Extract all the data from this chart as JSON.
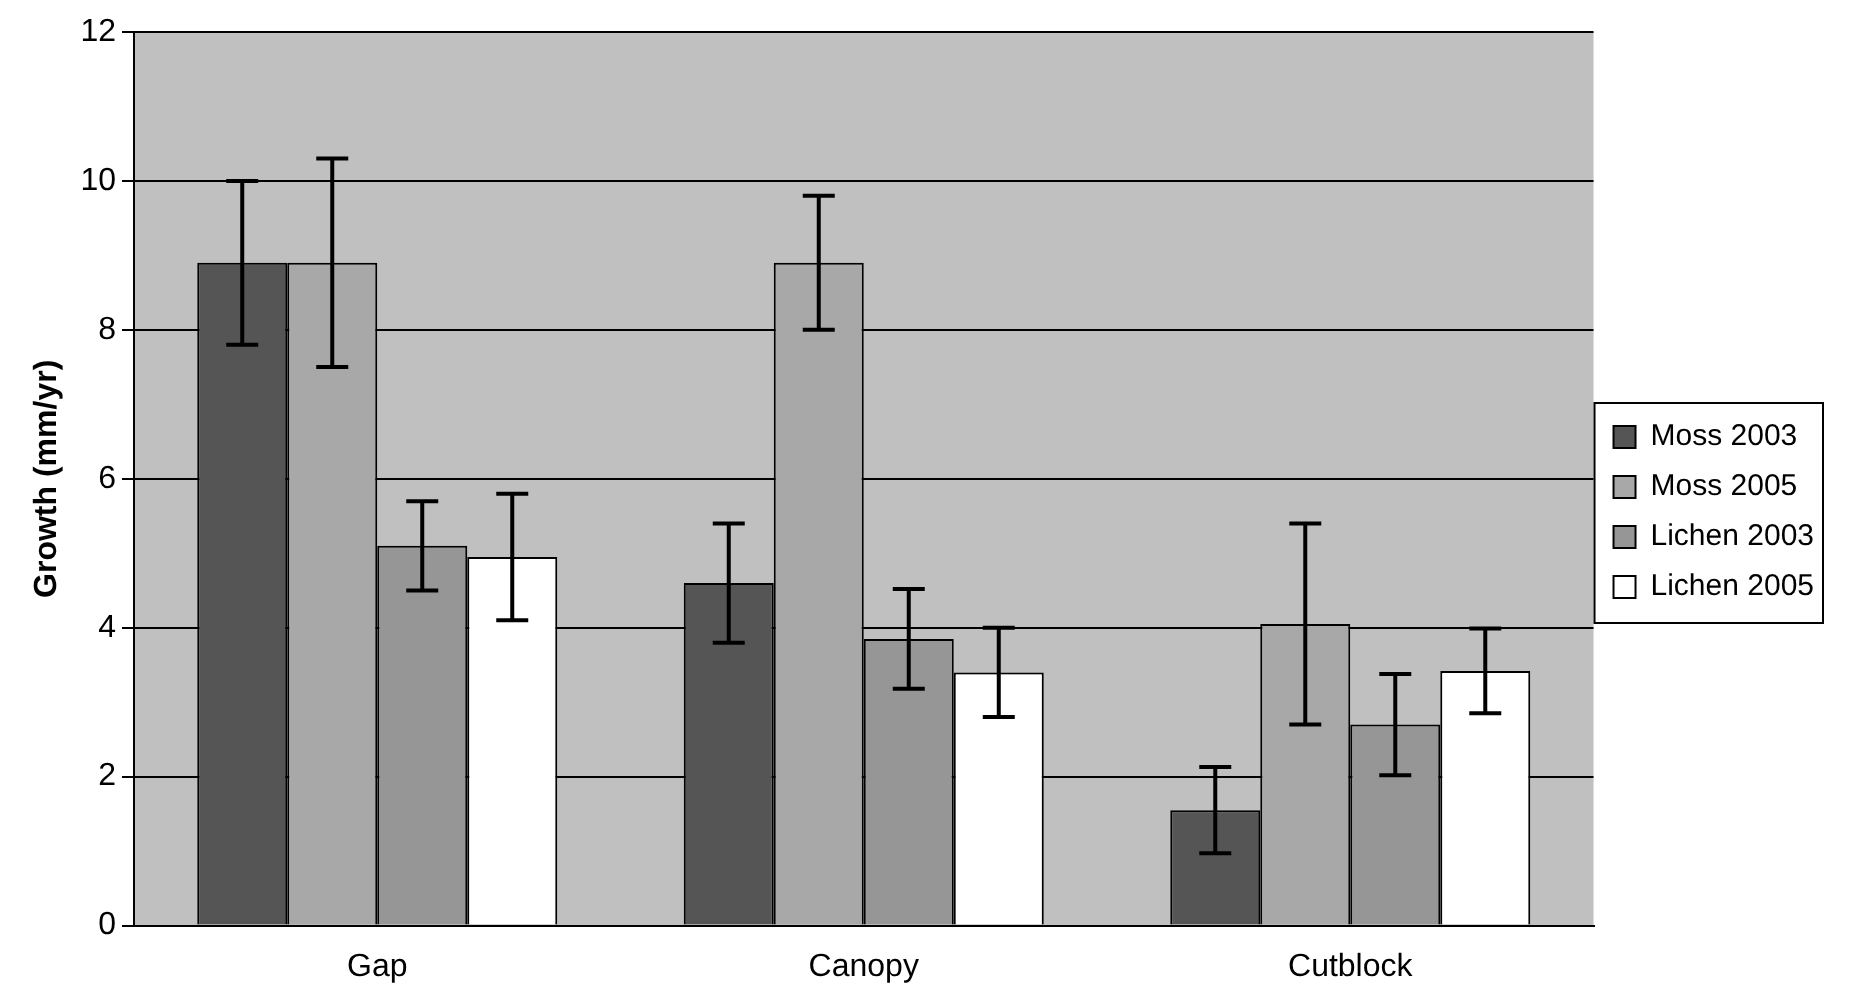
{
  "chart_data": {
    "type": "bar",
    "ylabel": "Growth (mm/yr)",
    "categories": [
      "Gap",
      "Canopy",
      "Cutblock"
    ],
    "series": [
      {
        "name": "Moss 2003",
        "color": "#555555",
        "values": [
          8.9,
          4.6,
          1.55
        ],
        "errors": [
          1.1,
          0.8,
          0.58
        ]
      },
      {
        "name": "Moss 2005",
        "color": "#a8a8a8",
        "values": [
          8.9,
          8.9,
          4.05
        ],
        "errors": [
          1.4,
          0.9,
          1.35
        ]
      },
      {
        "name": "Lichen 2003",
        "color": "#969696",
        "values": [
          5.1,
          3.85,
          2.7
        ],
        "errors": [
          0.6,
          0.67,
          0.68
        ]
      },
      {
        "name": "Lichen 2005",
        "color": "#ffffff",
        "values": [
          4.95,
          3.4,
          3.42
        ],
        "errors": [
          0.85,
          0.6,
          0.57
        ]
      }
    ],
    "ylim": [
      0,
      12
    ],
    "yticks": [
      0,
      2,
      4,
      6,
      8,
      10,
      12
    ],
    "grid": "y",
    "legend": "right"
  }
}
